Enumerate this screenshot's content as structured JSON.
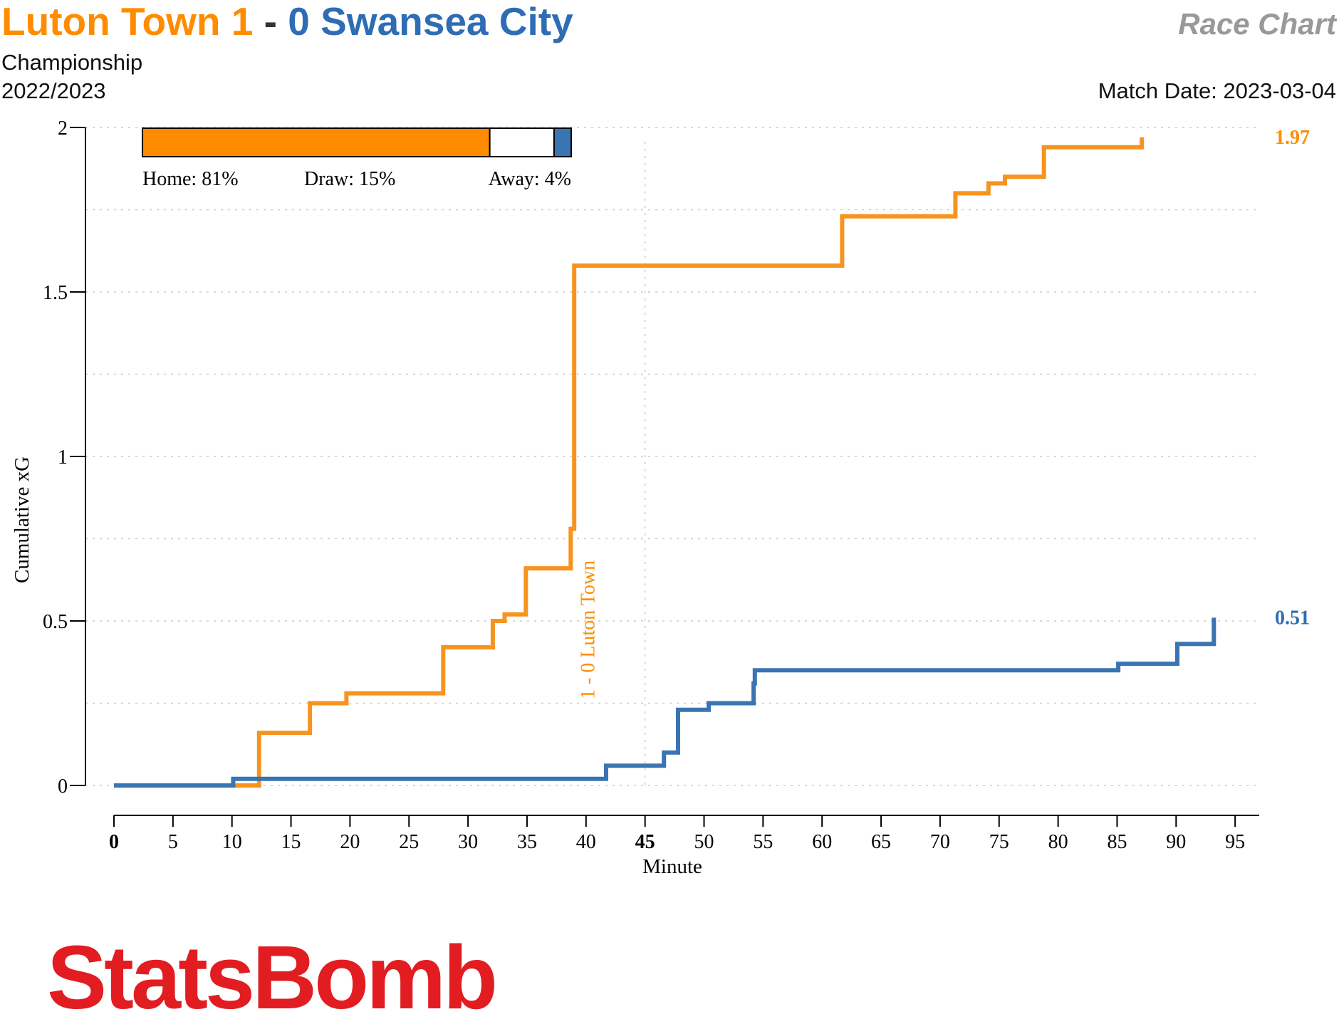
{
  "header": {
    "home_name": "Luton Town",
    "home_score": "1",
    "separator": "-",
    "away_score": "0",
    "away_name": "Swansea City",
    "chart_kind": "Race Chart",
    "competition": "Championship",
    "season": "2022/2023",
    "match_date_label": "Match Date: 2023-03-04"
  },
  "colors": {
    "home": "#f7931e",
    "away": "#3a74b2",
    "home_text": "#ff8c00",
    "away_text": "#2e6db4",
    "brand": "#e21d22",
    "grid": "#cccccc"
  },
  "probabilities": {
    "home": 81,
    "draw": 15,
    "away": 4,
    "home_label": "Home: 81%",
    "draw_label": "Draw: 15%",
    "away_label": "Away: 4%"
  },
  "chart_data": {
    "type": "line",
    "step": true,
    "xlabel": "Minute",
    "ylabel": "Cumulative xG",
    "xlim": [
      0,
      97
    ],
    "ylim": [
      0,
      2
    ],
    "x_ticks": [
      0,
      5,
      10,
      15,
      20,
      25,
      30,
      35,
      40,
      45,
      50,
      55,
      60,
      65,
      70,
      75,
      80,
      85,
      90,
      95
    ],
    "x_tick_labels": [
      "0",
      "5",
      "10",
      "15",
      "20",
      "25",
      "30",
      "35",
      "40",
      "45",
      "50",
      "55",
      "60",
      "65",
      "70",
      "75",
      "80",
      "85",
      "90",
      "95"
    ],
    "y_ticks": [
      0,
      0.5,
      1,
      1.5,
      2
    ],
    "y_tick_labels": [
      "0",
      "0.5",
      "1",
      "1.5",
      "2"
    ],
    "grid": true,
    "halftime_minute": 45,
    "series": [
      {
        "name": "Luton Town",
        "team": "home",
        "points": [
          [
            0,
            0
          ],
          [
            12.3,
            0.16
          ],
          [
            16.6,
            0.25
          ],
          [
            19.7,
            0.28
          ],
          [
            27.9,
            0.42
          ],
          [
            32.1,
            0.5
          ],
          [
            33.1,
            0.52
          ],
          [
            34.9,
            0.66
          ],
          [
            38.7,
            0.78
          ],
          [
            39,
            1.58
          ],
          [
            61.7,
            1.73
          ],
          [
            71.3,
            1.8
          ],
          [
            74.1,
            1.83
          ],
          [
            75.5,
            1.85
          ],
          [
            78.8,
            1.94
          ],
          [
            87.1,
            1.97
          ]
        ],
        "final_label": "1.97"
      },
      {
        "name": "Swansea City",
        "team": "away",
        "points": [
          [
            0,
            0
          ],
          [
            10.1,
            0.02
          ],
          [
            41.7,
            0.06
          ],
          [
            46.6,
            0.1
          ],
          [
            47.8,
            0.23
          ],
          [
            50.4,
            0.25
          ],
          [
            54.2,
            0.31
          ],
          [
            54.3,
            0.35
          ],
          [
            85.1,
            0.37
          ],
          [
            90.1,
            0.43
          ],
          [
            93.2,
            0.51
          ]
        ],
        "final_label": "0.51"
      }
    ],
    "annotations": [
      {
        "minute": 38.9,
        "text": "1 - 0 Luton Town",
        "team": "home"
      }
    ]
  },
  "branding": {
    "logo_text": "StatsBomb"
  }
}
